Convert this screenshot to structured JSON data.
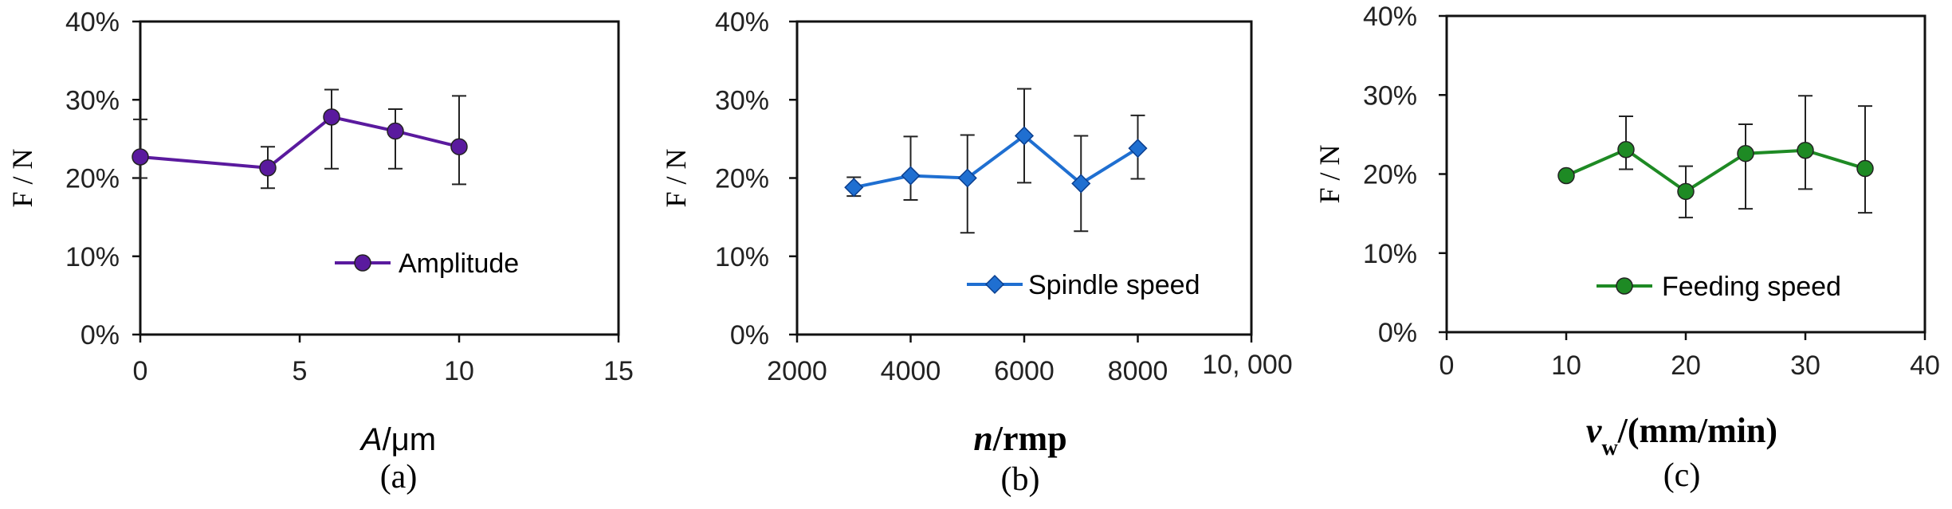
{
  "chart_data": [
    {
      "type": "line",
      "panel_caption": "(a)",
      "xlabel_italic": "A",
      "xlabel_rest": "/μm",
      "ylabel": "F / N",
      "xlim": [
        0,
        15
      ],
      "ylim": [
        0,
        40
      ],
      "x_ticks": [
        "0",
        "5",
        "10",
        "15"
      ],
      "y_ticks": [
        "0%",
        "10%",
        "20%",
        "30%",
        "40%"
      ],
      "series": [
        {
          "name": "Amplitude",
          "color": "#5a1a9e",
          "marker": "circle",
          "x": [
            0,
            4,
            6,
            8,
            10
          ],
          "y": [
            22.7,
            21.3,
            27.8,
            26.0,
            24.0
          ],
          "err_low": [
            20.0,
            18.7,
            21.2,
            21.2,
            19.2
          ],
          "err_high": [
            27.5,
            24.0,
            31.3,
            28.8,
            30.5
          ]
        }
      ]
    },
    {
      "type": "line",
      "panel_caption": "(b)",
      "xlabel_italic": "n",
      "xlabel_rest": "/rmp",
      "ylabel": "F / N",
      "xlim": [
        2000,
        10000
      ],
      "ylim": [
        0,
        40
      ],
      "x_ticks": [
        "2000",
        "4000",
        "6000",
        "8000",
        "10, 000"
      ],
      "y_ticks": [
        "0%",
        "10%",
        "20%",
        "30%",
        "40%"
      ],
      "series": [
        {
          "name": "Spindle speed",
          "color": "#1f6fd1",
          "marker": "diamond",
          "x": [
            3000,
            4000,
            5000,
            6000,
            7000,
            8000
          ],
          "y": [
            18.8,
            20.3,
            20.0,
            25.4,
            19.3,
            23.8
          ],
          "err_low": [
            17.7,
            17.2,
            13.0,
            19.4,
            13.2,
            19.9
          ],
          "err_high": [
            20.1,
            25.3,
            25.5,
            31.4,
            25.4,
            28.0
          ]
        }
      ]
    },
    {
      "type": "line",
      "panel_caption": "(c)",
      "xlabel_italic": "v",
      "xlabel_sub": "w",
      "xlabel_rest": "/(mm/min)",
      "ylabel": "F / N",
      "xlim": [
        0,
        40
      ],
      "ylim": [
        0,
        40
      ],
      "x_ticks": [
        "0",
        "10",
        "20",
        "30",
        "40"
      ],
      "y_ticks": [
        "0%",
        "10%",
        "20%",
        "30%",
        "40%"
      ],
      "series": [
        {
          "name": "Feeding speed",
          "color": "#1e8a24",
          "marker": "circle",
          "x": [
            10,
            15,
            20,
            25,
            30,
            35
          ],
          "y": [
            19.8,
            23.1,
            17.8,
            22.6,
            23.0,
            20.7
          ],
          "err_low": [
            19.8,
            20.6,
            14.5,
            15.6,
            18.1,
            15.1
          ],
          "err_high": [
            19.8,
            27.3,
            21.0,
            26.3,
            29.9,
            28.6
          ]
        }
      ]
    }
  ]
}
